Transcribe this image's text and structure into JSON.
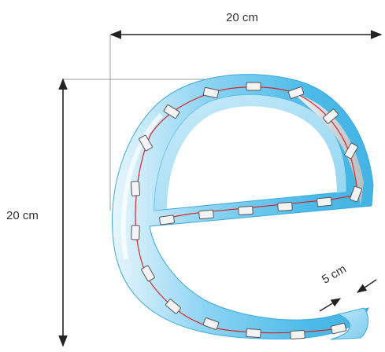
{
  "dimensions": {
    "width_label": "20 cm",
    "height_label": "20 cm",
    "depth_label": "5 cm"
  },
  "colors": {
    "letter_face": "#55c0ec",
    "letter_face_light": "#d8f0fb",
    "letter_side": "#9fdcf5",
    "inner_shadow": "#c8ccd0",
    "wire": "#d9262b",
    "led_module": "#f4f4f4",
    "dimension_line": "#222222"
  },
  "icons": {
    "subject": "channel-letter-e-icon",
    "led": "led-module-icon"
  }
}
